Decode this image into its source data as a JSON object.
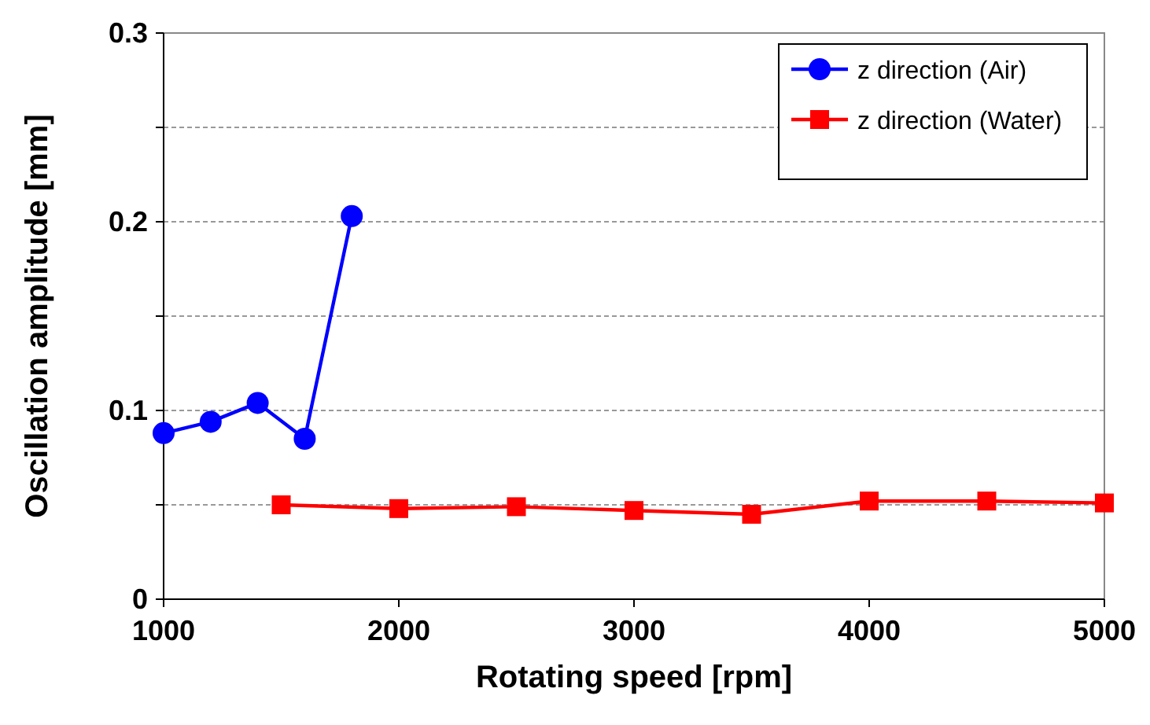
{
  "chart_data": {
    "type": "line",
    "xlabel": "Rotating speed [rpm]",
    "ylabel": "Oscillation amplitude [mm]",
    "xlim": [
      1000,
      5000
    ],
    "xticks": [
      1000,
      2000,
      3000,
      4000,
      5000
    ],
    "ylim": [
      0,
      0.3
    ],
    "yticks": [
      0,
      {
        "value": 0.05,
        "label": null
      },
      0.1,
      {
        "value": 0.15,
        "label": null
      },
      0.2,
      {
        "value": 0.25,
        "label": null
      },
      0.3
    ],
    "grid": "y",
    "legend": "top right",
    "series": [
      {
        "name": "z direction (Air)",
        "color": "#0000ff",
        "marker": "circle",
        "x": [
          1000,
          1200,
          1400,
          1600,
          1800
        ],
        "values": [
          0.088,
          0.094,
          0.104,
          0.085,
          0.203
        ]
      },
      {
        "name": "z direction (Water)",
        "color": "#ff0000",
        "marker": "square",
        "x": [
          1500,
          2000,
          2500,
          3000,
          3500,
          4000,
          4500,
          5000
        ],
        "values": [
          0.05,
          0.048,
          0.049,
          0.047,
          0.045,
          0.052,
          0.052,
          0.051
        ]
      }
    ]
  }
}
